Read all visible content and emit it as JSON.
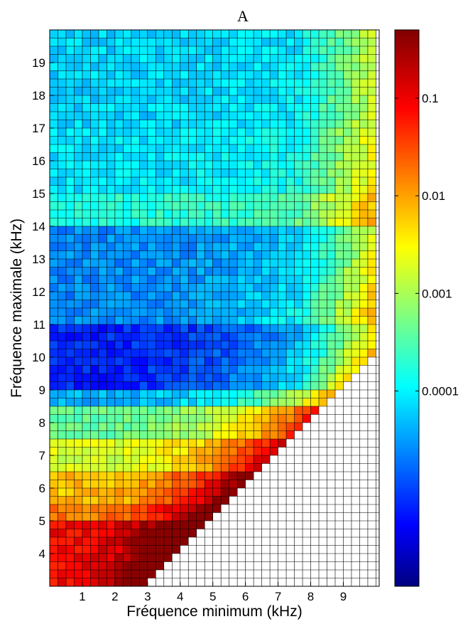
{
  "chart_data": {
    "type": "heatmap",
    "title": "A",
    "xlabel": "Fréquence minimum (kHz)",
    "ylabel": "Fréquence maximale (kHz)",
    "xlim": [
      0,
      10.1
    ],
    "ylim": [
      3,
      20
    ],
    "x_ticks": [
      1,
      2,
      3,
      4,
      5,
      6,
      7,
      8,
      9
    ],
    "y_ticks": [
      4,
      5,
      6,
      7,
      8,
      9,
      10,
      11,
      12,
      13,
      14,
      15,
      16,
      17,
      18,
      19
    ],
    "x_tick_labels": [
      "1",
      "2",
      "3",
      "4",
      "5",
      "6",
      "7",
      "8",
      "9"
    ],
    "y_tick_labels": [
      "4",
      "5",
      "6",
      "7",
      "8",
      "9",
      "10",
      "11",
      "12",
      "13",
      "14",
      "15",
      "16",
      "17",
      "18",
      "19"
    ],
    "cell_size_khz": 0.25,
    "empty_region": "cells where minimum frequency >= maximum frequency (lower-right triangle) have no value and are drawn white",
    "colorbar": {
      "scale": "log",
      "colormap": "jet",
      "range": [
        1e-06,
        0.5
      ],
      "ticks": [
        0.0001,
        0.001,
        0.01,
        0.1
      ],
      "tick_labels": [
        "0.0001",
        "0.001",
        "0.01",
        "0.1"
      ]
    },
    "bands": [
      {
        "fmax": [
          3.0,
          5.0
        ],
        "value": 0.1
      },
      {
        "fmax": [
          5.0,
          5.5
        ],
        "value": 0.02
      },
      {
        "fmax": [
          5.5,
          6.5
        ],
        "value": 0.008
      },
      {
        "fmax": [
          6.5,
          7.5
        ],
        "value": 0.002
      },
      {
        "fmax": [
          7.5,
          8.5
        ],
        "value": 0.0005
      },
      {
        "fmax": [
          8.5,
          9.0
        ],
        "value": 5e-05
      },
      {
        "fmax": [
          9.0,
          11.0
        ],
        "value": 8e-06
      },
      {
        "fmax": [
          11.0,
          14.0
        ],
        "value": 3e-05
      },
      {
        "fmax": [
          14.0,
          15.0
        ],
        "value": 0.0002
      },
      {
        "fmax": [
          15.0,
          17.0
        ],
        "value": 0.0001
      },
      {
        "fmax": [
          17.0,
          20.0
        ],
        "value": 8e-05
      }
    ],
    "fmin_gradient": "values increase toward higher minimum frequency, reaching about 0.003–0.01 at fmin ≈ 9.5–10 kHz"
  }
}
